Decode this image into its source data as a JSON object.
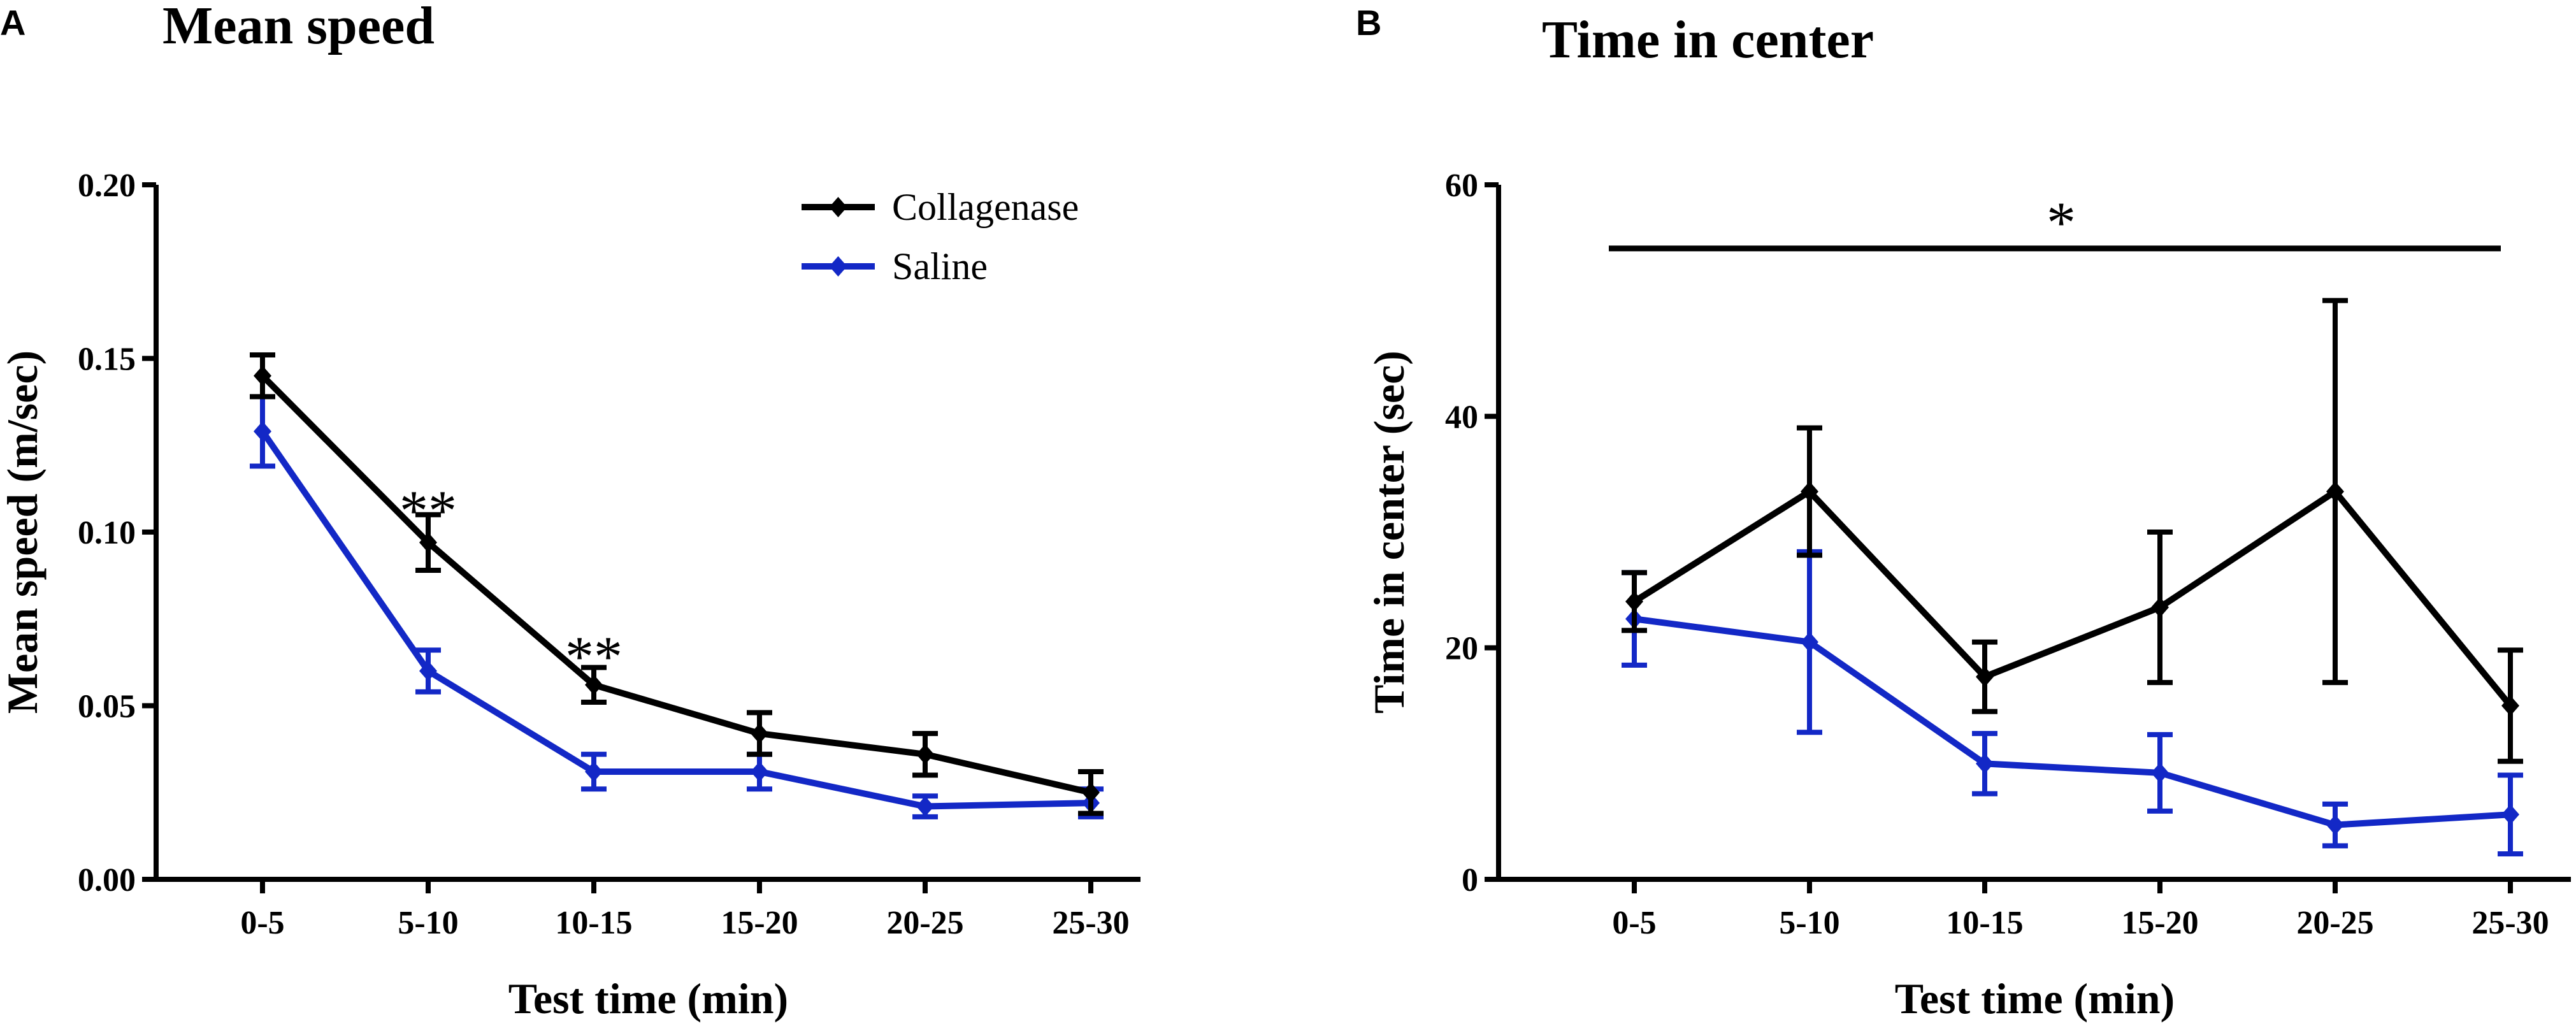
{
  "panels": [
    {
      "letter": "A",
      "chart_data": {
        "type": "line",
        "title": "Mean speed",
        "xlabel": "Test time (min)",
        "ylabel": "Mean speed (m/sec)",
        "categories": [
          "0-5",
          "5-10",
          "10-15",
          "15-20",
          "20-25",
          "25-30"
        ],
        "ylim": [
          0,
          0.2
        ],
        "yticks": [
          0,
          0.05,
          0.1,
          0.15,
          0.2
        ],
        "ytick_labels": [
          "0.00",
          "0.05",
          "0.10",
          "0.15",
          "0.20"
        ],
        "legend": {
          "position": "top-right"
        },
        "series": [
          {
            "name": "Collagenase",
            "color": "#000000",
            "values": [
              0.145,
              0.097,
              0.056,
              0.042,
              0.036,
              0.025
            ],
            "errors": [
              0.006,
              0.008,
              0.005,
              0.006,
              0.006,
              0.006
            ]
          },
          {
            "name": "Saline",
            "color": "#1328c6",
            "values": [
              0.129,
              0.06,
              0.031,
              0.031,
              0.021,
              0.022
            ],
            "errors": [
              0.01,
              0.006,
              0.005,
              0.005,
              0.003,
              0.004
            ]
          }
        ],
        "annotations": [
          {
            "text": "**",
            "category": "5-10",
            "y": 0.108
          },
          {
            "text": "**",
            "category": "10-15",
            "y": 0.066
          }
        ]
      }
    },
    {
      "letter": "B",
      "chart_data": {
        "type": "line",
        "title": "Time in center",
        "xlabel": "Test time (min)",
        "ylabel": "Time in center (sec)",
        "categories": [
          "0-5",
          "5-10",
          "10-15",
          "15-20",
          "20-25",
          "25-30"
        ],
        "ylim": [
          0,
          60
        ],
        "yticks": [
          0,
          20,
          40,
          60
        ],
        "ytick_labels": [
          "0",
          "20",
          "40",
          "60"
        ],
        "series": [
          {
            "name": "Collagenase",
            "color": "#000000",
            "values": [
              24,
              33.5,
              17.5,
              23.5,
              33.5,
              15
            ],
            "errors": [
              2.5,
              5.5,
              3,
              6.5,
              16.5,
              4.8
            ]
          },
          {
            "name": "Saline",
            "color": "#1328c6",
            "values": [
              22.5,
              20.5,
              10,
              9.2,
              4.7,
              5.6
            ],
            "errors": [
              4,
              7.8,
              2.6,
              3.3,
              1.8,
              3.4
            ]
          }
        ],
        "significance_bar": {
          "text": "*",
          "from": "0-5",
          "to": "25-30",
          "y": 54.5
        }
      }
    }
  ]
}
